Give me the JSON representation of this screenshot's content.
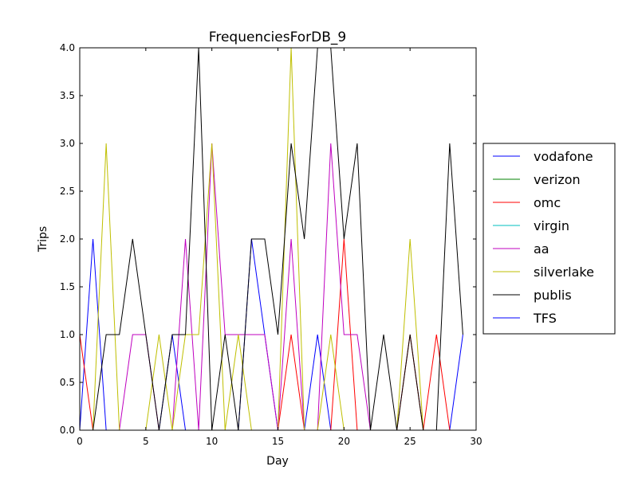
{
  "chart_data": {
    "type": "line",
    "title": "FrequenciesForDB_9",
    "xlabel": "Day",
    "ylabel": "Trips",
    "xlim": [
      0,
      30
    ],
    "ylim": [
      0,
      4
    ],
    "xticks": [
      0,
      5,
      10,
      15,
      20,
      25,
      30
    ],
    "yticks": [
      0.0,
      0.5,
      1.0,
      1.5,
      2.0,
      2.5,
      3.0,
      3.5,
      4.0
    ],
    "xtick_labels": [
      "0",
      "5",
      "10",
      "15",
      "20",
      "25",
      "30"
    ],
    "ytick_labels": [
      "0.0",
      "0.5",
      "1.0",
      "1.5",
      "2.0",
      "2.5",
      "3.0",
      "3.5",
      "4.0"
    ],
    "grid": false,
    "legend_position": "outside-right",
    "x": [
      0,
      1,
      2,
      3,
      4,
      5,
      6,
      7,
      8,
      9,
      10,
      11,
      12,
      13,
      14,
      15,
      16,
      17,
      18,
      19,
      20,
      21,
      22,
      23,
      24,
      25,
      26,
      27,
      28,
      29
    ],
    "series": [
      {
        "name": "vodafone",
        "color": "#0000ff",
        "values": [
          0,
          2,
          0,
          0,
          0,
          0,
          0,
          1,
          0,
          0,
          0,
          0,
          0,
          2,
          1,
          0,
          0,
          0,
          1,
          0,
          0,
          0,
          0,
          0,
          0,
          0,
          0,
          0,
          0,
          1
        ]
      },
      {
        "name": "verizon",
        "color": "#008000",
        "values": [
          0,
          0,
          0,
          0,
          0,
          0,
          0,
          0,
          0,
          0,
          0,
          0,
          0,
          0,
          0,
          0,
          0,
          0,
          0,
          0,
          0,
          0,
          0,
          0,
          0,
          0,
          0,
          0,
          0,
          0
        ]
      },
      {
        "name": "omc",
        "color": "#ff0000",
        "values": [
          1,
          0,
          0,
          0,
          0,
          0,
          0,
          0,
          0,
          0,
          0,
          0,
          0,
          0,
          0,
          0,
          1,
          0,
          0,
          0,
          2,
          0,
          0,
          0,
          0,
          1,
          0,
          1,
          0,
          0
        ]
      },
      {
        "name": "virgin",
        "color": "#00bfbf",
        "values": [
          0,
          0,
          0,
          0,
          0,
          0,
          0,
          0,
          0,
          0,
          0,
          0,
          0,
          0,
          0,
          0,
          0,
          0,
          0,
          0,
          0,
          0,
          0,
          0,
          0,
          0,
          0,
          0,
          0,
          0
        ]
      },
      {
        "name": "aa",
        "color": "#bf00bf",
        "values": [
          0,
          0,
          0,
          0,
          1,
          1,
          0,
          0,
          2,
          0,
          3,
          1,
          1,
          1,
          1,
          0,
          2,
          0,
          0,
          3,
          1,
          1,
          0,
          0,
          0,
          0,
          0,
          0,
          0,
          0
        ]
      },
      {
        "name": "silverlake",
        "color": "#bfbf00",
        "values": [
          0,
          0,
          3,
          0,
          0,
          0,
          1,
          0,
          1,
          1,
          3,
          0,
          1,
          0,
          0,
          0,
          4,
          0,
          0,
          1,
          0,
          0,
          0,
          0,
          0,
          2,
          0,
          0,
          0,
          0
        ]
      },
      {
        "name": "publis",
        "color": "#000000",
        "values": [
          0,
          0,
          1,
          1,
          2,
          1,
          0,
          1,
          1,
          4,
          0,
          1,
          0,
          2,
          2,
          1,
          3,
          2,
          4,
          4,
          2,
          3,
          0,
          1,
          0,
          1,
          0,
          0,
          3,
          1
        ]
      },
      {
        "name": "TFS",
        "color": "#0000ff",
        "values": [
          0,
          0,
          0,
          0,
          0,
          0,
          0,
          0,
          0,
          0,
          0,
          0,
          0,
          0,
          0,
          0,
          0,
          0,
          0,
          0,
          0,
          0,
          0,
          0,
          0,
          0,
          0,
          0,
          0,
          0
        ]
      }
    ]
  }
}
